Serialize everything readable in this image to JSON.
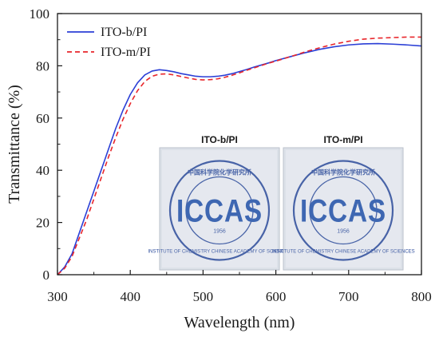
{
  "chart_data": {
    "type": "line",
    "title": "",
    "xlabel": "Wavelength (nm)",
    "ylabel": "Transmittance (%)",
    "xlim": [
      300,
      800
    ],
    "ylim": [
      0,
      100
    ],
    "x_ticks": [
      300,
      400,
      500,
      600,
      700,
      800
    ],
    "y_ticks": [
      0,
      20,
      40,
      60,
      80,
      100
    ],
    "grid": false,
    "legend_position": "top-left",
    "series": [
      {
        "name": "ITO-b/PI",
        "color": "#2b3fd6",
        "style": "solid",
        "x": [
          300,
          310,
          320,
          330,
          340,
          350,
          360,
          370,
          380,
          390,
          400,
          410,
          420,
          430,
          440,
          450,
          460,
          470,
          480,
          490,
          500,
          510,
          520,
          530,
          540,
          550,
          560,
          570,
          580,
          590,
          600,
          620,
          640,
          660,
          680,
          700,
          720,
          740,
          760,
          780,
          800
        ],
        "values": [
          0,
          3,
          8,
          16,
          24,
          32,
          40,
          48,
          56,
          63,
          69,
          73.5,
          76.5,
          78,
          78.5,
          78.2,
          77.7,
          77,
          76.5,
          76,
          75.8,
          75.8,
          76,
          76.4,
          77,
          77.8,
          78.6,
          79.5,
          80.3,
          81.1,
          82,
          83.5,
          85,
          86.3,
          87.3,
          88,
          88.4,
          88.5,
          88.3,
          88,
          87.6
        ]
      },
      {
        "name": "ITO-m/PI",
        "color": "#e8262b",
        "style": "dashed",
        "x": [
          300,
          310,
          320,
          330,
          340,
          350,
          360,
          370,
          380,
          390,
          400,
          410,
          420,
          430,
          440,
          450,
          460,
          470,
          480,
          490,
          500,
          510,
          520,
          530,
          540,
          550,
          560,
          570,
          580,
          590,
          600,
          620,
          640,
          660,
          680,
          700,
          720,
          740,
          760,
          780,
          800
        ],
        "values": [
          0,
          2.5,
          7,
          14,
          21,
          29,
          37,
          45,
          52.5,
          59.5,
          65.5,
          70.5,
          74,
          76,
          76.8,
          76.9,
          76.5,
          75.9,
          75.3,
          74.8,
          74.6,
          74.7,
          75,
          75.6,
          76.4,
          77.3,
          78.3,
          79.2,
          80.1,
          81,
          81.8,
          83.5,
          85.3,
          86.9,
          88.3,
          89.4,
          90.2,
          90.6,
          90.8,
          91,
          91
        ]
      }
    ],
    "inset_photos": [
      {
        "caption": "ITO-b/PI",
        "logo_text": "ICCAS",
        "year": "1956"
      },
      {
        "caption": "ITO-m/PI",
        "logo_text": "ICCAS",
        "year": "1956"
      }
    ]
  }
}
